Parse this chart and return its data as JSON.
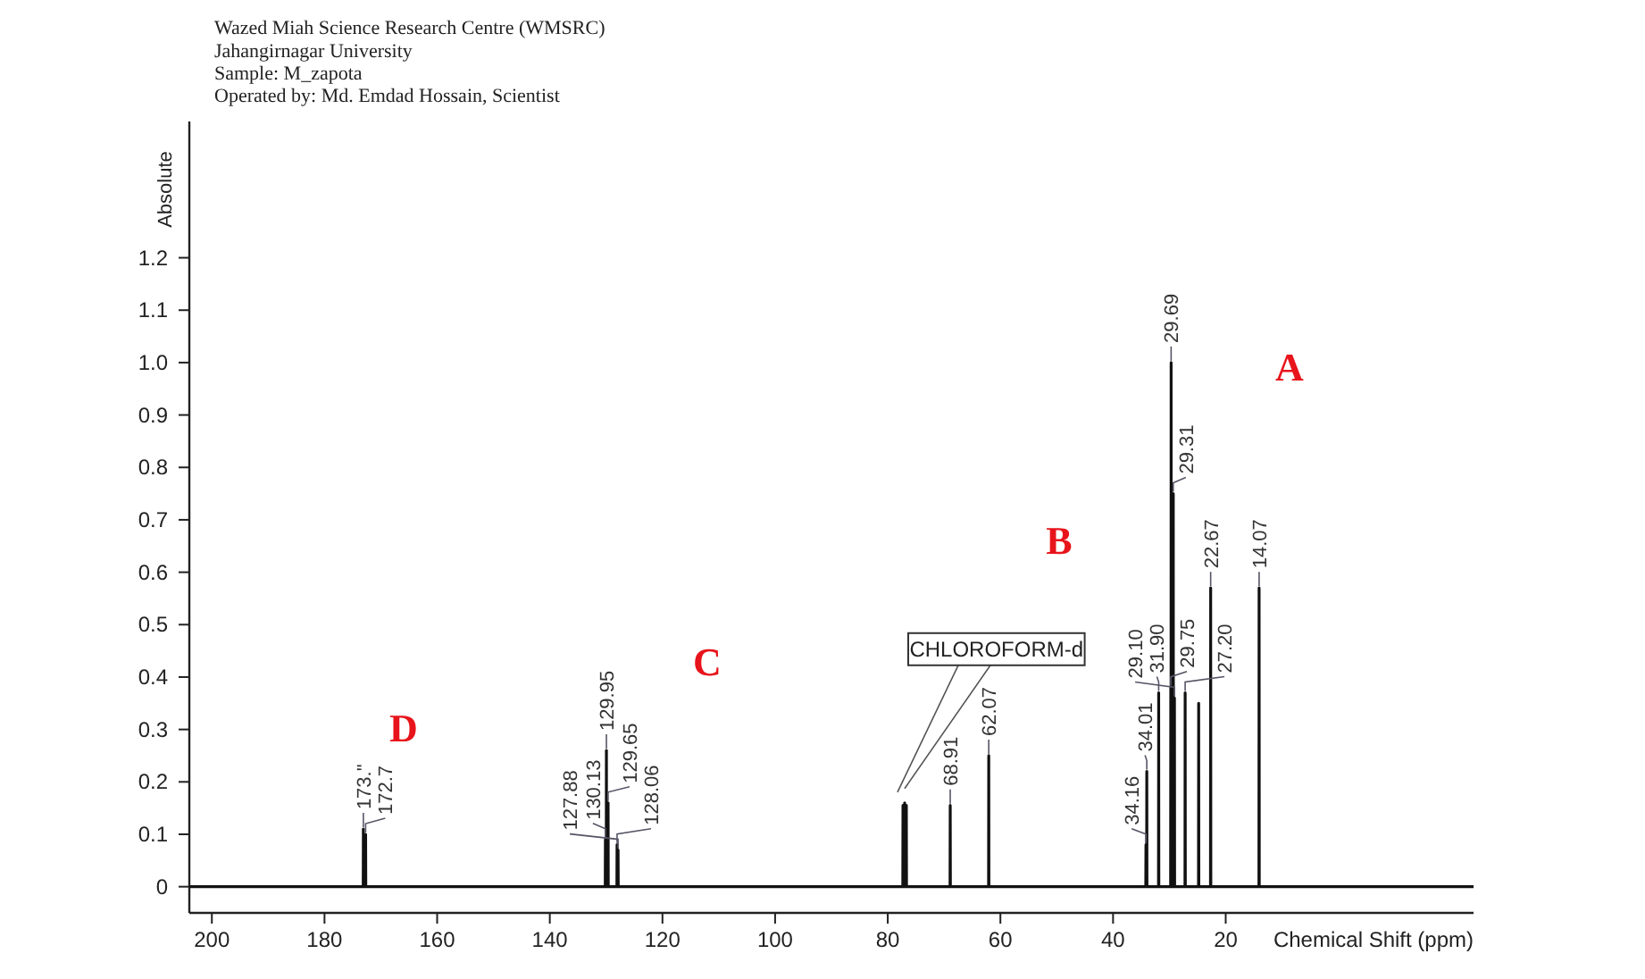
{
  "chart_data": {
    "type": "line",
    "title": "Wazed Miah Science Research Centre (WMSRC)",
    "xlabel": "Chemical Shift (ppm)",
    "ylabel": "Absolute",
    "xlim": [
      204,
      -24
    ],
    "xticks": [
      200,
      180,
      160,
      140,
      120,
      100,
      80,
      60,
      40,
      20
    ],
    "ylim": [
      -0.05,
      1.46
    ],
    "yticks": [
      0,
      0.1,
      0.2,
      0.3,
      0.4,
      0.5,
      0.6,
      0.7,
      0.8,
      0.9,
      {
        "value": 1,
        "label": "1.0"
      },
      1.1,
      1.2
    ],
    "grid": false,
    "line_style": "solid",
    "series": [
      {
        "color": "#111111",
        "x": [
          204,
          173.13,
          173.1,
          173.07,
          172.73,
          172.7,
          172.67,
          130.16,
          130.13,
          130.1,
          129.98,
          129.95,
          129.92,
          129.68,
          129.65,
          129.62,
          128.09,
          128.06,
          128.03,
          127.91,
          127.88,
          127.85,
          77.33,
          77.3,
          77.27,
          77.03,
          77.0,
          76.97,
          76.73,
          76.7,
          76.67,
          68.94,
          68.91,
          68.88,
          62.1,
          62.07,
          62.04,
          34.19,
          34.16,
          34.13,
          34.04,
          34.01,
          33.98,
          31.93,
          31.9,
          31.87,
          29.78,
          29.75,
          29.72,
          29.71,
          29.69,
          29.67,
          29.34,
          29.31,
          29.28,
          29.13,
          29.1,
          29.07,
          27.23,
          27.2,
          27.17,
          24.83,
          24.8,
          24.77,
          22.7,
          22.67,
          22.64,
          14.1,
          14.07,
          14.04,
          -24
        ],
        "values": [
          0,
          0,
          0.11,
          0,
          0,
          0.1,
          0,
          0,
          0.09,
          0,
          0,
          0.26,
          0,
          0,
          0.16,
          0,
          0,
          0.08,
          0,
          0,
          0.07,
          0,
          0,
          0.155,
          0,
          0,
          0.16,
          0,
          0,
          0.155,
          0,
          0,
          0.155,
          0,
          0,
          0.25,
          0,
          0,
          0.08,
          0,
          0,
          0.22,
          0,
          0,
          0.37,
          0,
          0,
          0.38,
          0,
          0,
          1.0,
          0,
          0,
          0.75,
          0,
          0,
          0.36,
          0,
          0,
          0.37,
          0,
          0,
          0.35,
          0,
          0,
          0.57,
          0,
          0,
          0.57,
          0,
          0
        ]
      }
    ],
    "subtitle": "Jahangirnagar University\nSample: M_zapota\nOperated by: Md. Emdad Hossain, Scientist",
    "annotations": [
      "A",
      "B",
      "C",
      "D",
      {
        "text": "173.\"",
        "x": 173.1,
        "y": 0.11
      },
      {
        "text": "172.7",
        "x": 172.7,
        "y": 0.1
      },
      {
        "text": "130.13",
        "x": 130.13,
        "y": 0.09
      },
      {
        "text": "129.95",
        "x": 129.95,
        "y": 0.26
      },
      {
        "text": "129.65",
        "x": 129.65,
        "y": 0.16
      },
      {
        "text": "128.06",
        "x": 128.06,
        "y": 0.08
      },
      {
        "text": "127.88",
        "x": 127.88,
        "y": 0.07
      },
      {
        "text": "CHLOROFORM-d",
        "x": 77.0,
        "y": 0.16
      },
      {
        "text": "68.91",
        "x": 68.91,
        "y": 0.155
      },
      {
        "text": "62.07",
        "x": 62.07,
        "y": 0.25
      },
      {
        "text": "34.16",
        "x": 34.16,
        "y": 0.08
      },
      {
        "text": "34.01",
        "x": 34.01,
        "y": 0.22
      },
      {
        "text": "31.90",
        "x": 31.9,
        "y": 0.37
      },
      {
        "text": "29.75",
        "x": 29.75,
        "y": 0.38
      },
      {
        "text": "29.69",
        "x": 29.69,
        "y": 1.0
      },
      {
        "text": "29.31",
        "x": 29.31,
        "y": 0.75
      },
      {
        "text": "29.10",
        "x": 29.1,
        "y": 0.36
      },
      {
        "text": "27.20",
        "x": 27.2,
        "y": 0.37
      },
      {
        "text": "22.67",
        "x": 22.67,
        "y": 0.57
      },
      {
        "text": "14.07",
        "x": 14.07,
        "y": 0.57
      }
    ]
  }
}
